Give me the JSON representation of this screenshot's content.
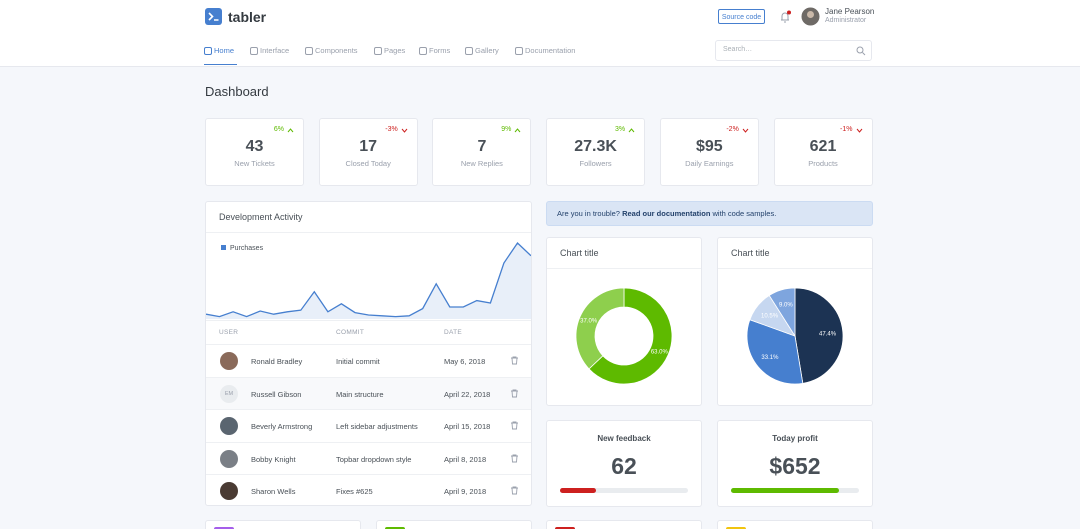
{
  "header": {
    "brand": "tabler",
    "source_button": "Source code",
    "user_name": "Jane Pearson",
    "user_role": "Administrator"
  },
  "nav": {
    "items": [
      "Home",
      "Interface",
      "Components",
      "Pages",
      "Forms",
      "Gallery",
      "Documentation"
    ],
    "active": 0,
    "search_placeholder": "Search…"
  },
  "page_title": "Dashboard",
  "stats": [
    {
      "change": "6%",
      "direction": "up",
      "value": "43",
      "label": "New Tickets"
    },
    {
      "change": "-3%",
      "direction": "down",
      "value": "17",
      "label": "Closed Today"
    },
    {
      "change": "9%",
      "direction": "up",
      "value": "7",
      "label": "New Replies"
    },
    {
      "change": "3%",
      "direction": "up",
      "value": "27.3K",
      "label": "Followers"
    },
    {
      "change": "-2%",
      "direction": "down",
      "value": "$95",
      "label": "Daily Earnings"
    },
    {
      "change": "-1%",
      "direction": "down",
      "value": "621",
      "label": "Products"
    }
  ],
  "development_activity": {
    "title": "Development Activity",
    "legend": "Purchases",
    "color": "#467fcf",
    "values": [
      6,
      3,
      9,
      3,
      10,
      6,
      9,
      11,
      34,
      9,
      19,
      8,
      5,
      4,
      3,
      4,
      13,
      44,
      15,
      15,
      23,
      20,
      70,
      95,
      79
    ],
    "columns": [
      "USER",
      "COMMIT",
      "DATE"
    ],
    "rows": [
      {
        "user": "Ronald Bradley",
        "commit": "Initial commit",
        "date": "May 6, 2018"
      },
      {
        "avatar": "EM",
        "user": "Russell Gibson",
        "commit": "Main structure",
        "date": "April 22, 2018"
      },
      {
        "user": "Beverly Armstrong",
        "commit": "Left sidebar adjustments",
        "date": "April 15, 2018"
      },
      {
        "user": "Bobby Knight",
        "commit": "Topbar dropdown style",
        "date": "April 8, 2018"
      },
      {
        "user": "Sharon Wells",
        "commit": "Fixes #625",
        "date": "April 9, 2018"
      }
    ]
  },
  "alert": {
    "text": "Are you in trouble?",
    "link": "Read our documentation",
    "suffix": "with code samples."
  },
  "donut": {
    "type": "donut",
    "title": "Chart title",
    "values": [
      63.0,
      37.0
    ],
    "value_labels": [
      "63.0%",
      "37.0%"
    ],
    "colors": [
      "#5eba00",
      "#8ecf4d"
    ]
  },
  "pie": {
    "type": "pie",
    "title": "Chart title",
    "values": [
      47.4,
      33.1,
      10.5,
      9.0
    ],
    "value_labels": [
      "47.4%",
      "33.1%",
      "10.5%",
      "9.0%"
    ],
    "colors": [
      "#1c3353",
      "#467fcf",
      "#c6d7f0",
      "#7ea5de"
    ]
  },
  "summary_cards": [
    {
      "title": "New feedback",
      "value": "62",
      "progress": 28,
      "color": "#cd201f"
    },
    {
      "title": "Today profit",
      "value": "$652",
      "progress": 84,
      "color": "#5eba00"
    }
  ]
}
